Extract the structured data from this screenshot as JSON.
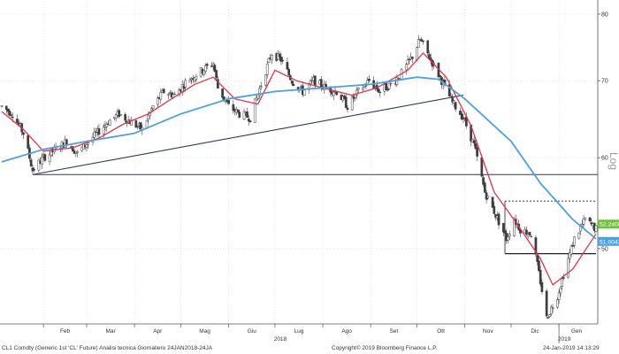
{
  "chart_data": {
    "type": "candlestick",
    "scale": "log",
    "ylim": [
      43,
      82
    ],
    "y_ticks": [
      {
        "value": 50,
        "label": "50"
      },
      {
        "value": 60,
        "label": "60"
      },
      {
        "value": 70,
        "label": "70"
      },
      {
        "value": 80,
        "label": "80"
      }
    ],
    "y_axis_title": "Log",
    "x_range": [
      "2018-01-05",
      "2019-01-25"
    ],
    "x_ticks": [
      {
        "date": "2018-02-01",
        "label": "Feb"
      },
      {
        "date": "2018-03-01",
        "label": "Mar"
      },
      {
        "date": "2018-04-01",
        "label": "Apr"
      },
      {
        "date": "2018-05-01",
        "label": "Mag"
      },
      {
        "date": "2018-06-01",
        "label": "Giu"
      },
      {
        "date": "2018-07-01",
        "label": "Lug"
      },
      {
        "date": "2018-08-01",
        "label": "Ago"
      },
      {
        "date": "2018-09-01",
        "label": "Set"
      },
      {
        "date": "2018-10-01",
        "label": "Ott"
      },
      {
        "date": "2018-11-01",
        "label": "Nov"
      },
      {
        "date": "2018-12-01",
        "label": "Dic"
      },
      {
        "date": "2019-01-01",
        "label": "Gen"
      }
    ],
    "year_labels": [
      {
        "date": "2018-07-01",
        "label": "2018"
      },
      {
        "date": "2019-01-01",
        "label": "2019"
      }
    ],
    "price_anchors": [
      [
        "2018-01-05",
        66.5
      ],
      [
        "2018-01-12",
        65.5
      ],
      [
        "2018-01-19",
        63.0
      ],
      [
        "2018-01-25",
        58.5
      ],
      [
        "2018-02-01",
        60.0
      ],
      [
        "2018-02-09",
        61.0
      ],
      [
        "2018-02-16",
        62.0
      ],
      [
        "2018-02-23",
        60.5
      ],
      [
        "2018-03-05",
        62.5
      ],
      [
        "2018-03-15",
        64.5
      ],
      [
        "2018-03-22",
        65.5
      ],
      [
        "2018-03-29",
        64.5
      ],
      [
        "2018-04-06",
        63.5
      ],
      [
        "2018-04-13",
        66.5
      ],
      [
        "2018-04-20",
        68.5
      ],
      [
        "2018-04-27",
        68.0
      ],
      [
        "2018-05-05",
        70.0
      ],
      [
        "2018-05-15",
        71.5
      ],
      [
        "2018-05-22",
        72.5
      ],
      [
        "2018-05-25",
        69.0
      ],
      [
        "2018-06-01",
        66.5
      ],
      [
        "2018-06-08",
        65.5
      ],
      [
        "2018-06-15",
        65.0
      ],
      [
        "2018-06-22",
        69.5
      ],
      [
        "2018-06-29",
        74.0
      ],
      [
        "2018-07-05",
        73.0
      ],
      [
        "2018-07-12",
        70.0
      ],
      [
        "2018-07-19",
        68.5
      ],
      [
        "2018-07-26",
        70.0
      ],
      [
        "2018-08-03",
        69.0
      ],
      [
        "2018-08-10",
        68.5
      ],
      [
        "2018-08-17",
        66.5
      ],
      [
        "2018-08-24",
        68.5
      ],
      [
        "2018-08-31",
        70.0
      ],
      [
        "2018-09-07",
        68.5
      ],
      [
        "2018-09-14",
        69.5
      ],
      [
        "2018-09-21",
        71.0
      ],
      [
        "2018-09-28",
        73.5
      ],
      [
        "2018-10-03",
        76.0
      ],
      [
        "2018-10-10",
        73.0
      ],
      [
        "2018-10-17",
        70.0
      ],
      [
        "2018-10-24",
        67.0
      ],
      [
        "2018-10-31",
        65.0
      ],
      [
        "2018-11-07",
        61.5
      ],
      [
        "2018-11-14",
        56.0
      ],
      [
        "2018-11-21",
        53.5
      ],
      [
        "2018-11-28",
        51.0
      ],
      [
        "2018-12-03",
        53.0
      ],
      [
        "2018-12-07",
        52.0
      ],
      [
        "2018-12-14",
        51.5
      ],
      [
        "2018-12-21",
        46.0
      ],
      [
        "2018-12-24",
        43.5
      ],
      [
        "2018-12-31",
        45.5
      ],
      [
        "2019-01-04",
        47.5
      ],
      [
        "2019-01-11",
        51.0
      ],
      [
        "2019-01-18",
        53.0
      ],
      [
        "2019-01-25",
        52.0
      ]
    ],
    "series": [
      {
        "name": "",
        "color": "#e8304c",
        "values": [
          [
            "2018-01-05",
            65.8
          ],
          [
            "2018-01-19",
            63.5
          ],
          [
            "2018-02-01",
            60.8
          ],
          [
            "2018-02-20",
            61.2
          ],
          [
            "2018-03-10",
            62.5
          ],
          [
            "2018-03-25",
            64.2
          ],
          [
            "2018-04-10",
            65.5
          ],
          [
            "2018-04-25",
            67.5
          ],
          [
            "2018-05-10",
            69.5
          ],
          [
            "2018-05-22",
            70.5
          ],
          [
            "2018-06-05",
            67.5
          ],
          [
            "2018-06-20",
            66.8
          ],
          [
            "2018-07-01",
            71.5
          ],
          [
            "2018-07-15",
            70.0
          ],
          [
            "2018-08-01",
            69.0
          ],
          [
            "2018-08-20",
            68.0
          ],
          [
            "2018-09-05",
            69.0
          ],
          [
            "2018-09-25",
            71.5
          ],
          [
            "2018-10-05",
            74.0
          ],
          [
            "2018-10-20",
            70.5
          ],
          [
            "2018-11-05",
            64.0
          ],
          [
            "2018-11-20",
            56.0
          ],
          [
            "2018-12-05",
            52.5
          ],
          [
            "2018-12-20",
            49.0
          ],
          [
            "2018-12-28",
            46.5
          ],
          [
            "2019-01-10",
            48.0
          ],
          [
            "2019-01-25",
            51.5
          ]
        ]
      },
      {
        "name": "",
        "color": "#4aa3df",
        "values": [
          [
            "2018-01-05",
            59.5
          ],
          [
            "2018-02-01",
            61.0
          ],
          [
            "2018-03-01",
            62.0
          ],
          [
            "2018-04-01",
            63.0
          ],
          [
            "2018-05-01",
            65.5
          ],
          [
            "2018-06-01",
            67.5
          ],
          [
            "2018-07-01",
            68.5
          ],
          [
            "2018-08-01",
            69.0
          ],
          [
            "2018-09-01",
            69.5
          ],
          [
            "2018-10-01",
            70.5
          ],
          [
            "2018-10-15",
            70.2
          ],
          [
            "2018-11-01",
            67.5
          ],
          [
            "2018-12-01",
            62.0
          ],
          [
            "2018-12-20",
            57.0
          ],
          [
            "2019-01-10",
            53.0
          ],
          [
            "2019-01-25",
            51.0
          ]
        ]
      }
    ],
    "trendlines": [
      {
        "kind": "trend",
        "from": [
          "2018-01-25",
          58.0
        ],
        "to": [
          "2018-10-31",
          68.0
        ],
        "color": "#2f3a55"
      },
      {
        "kind": "horizontal",
        "value": 58.0,
        "color": "#2f3a55"
      }
    ],
    "annotation_rect": {
      "x1": "2018-11-27",
      "x2": "2019-01-25",
      "top": 55.0,
      "bottom": 49.5,
      "color": "#222222"
    },
    "price_badges": [
      {
        "label": "52.2400",
        "value": 52.24,
        "color": "#6dc23a"
      },
      {
        "label": "51.0042",
        "value": 51.0,
        "color": "#4aa3df"
      }
    ]
  },
  "footer": {
    "left": "CL1 Comdty (Generic 1st 'CL' Future) Analisi tecnica  Giornaliero 24JAN2018-24JA",
    "center": "Copyright© 2019 Bloomberg Finance L.P.",
    "right": "24-Jan-2019 14:13:29"
  }
}
